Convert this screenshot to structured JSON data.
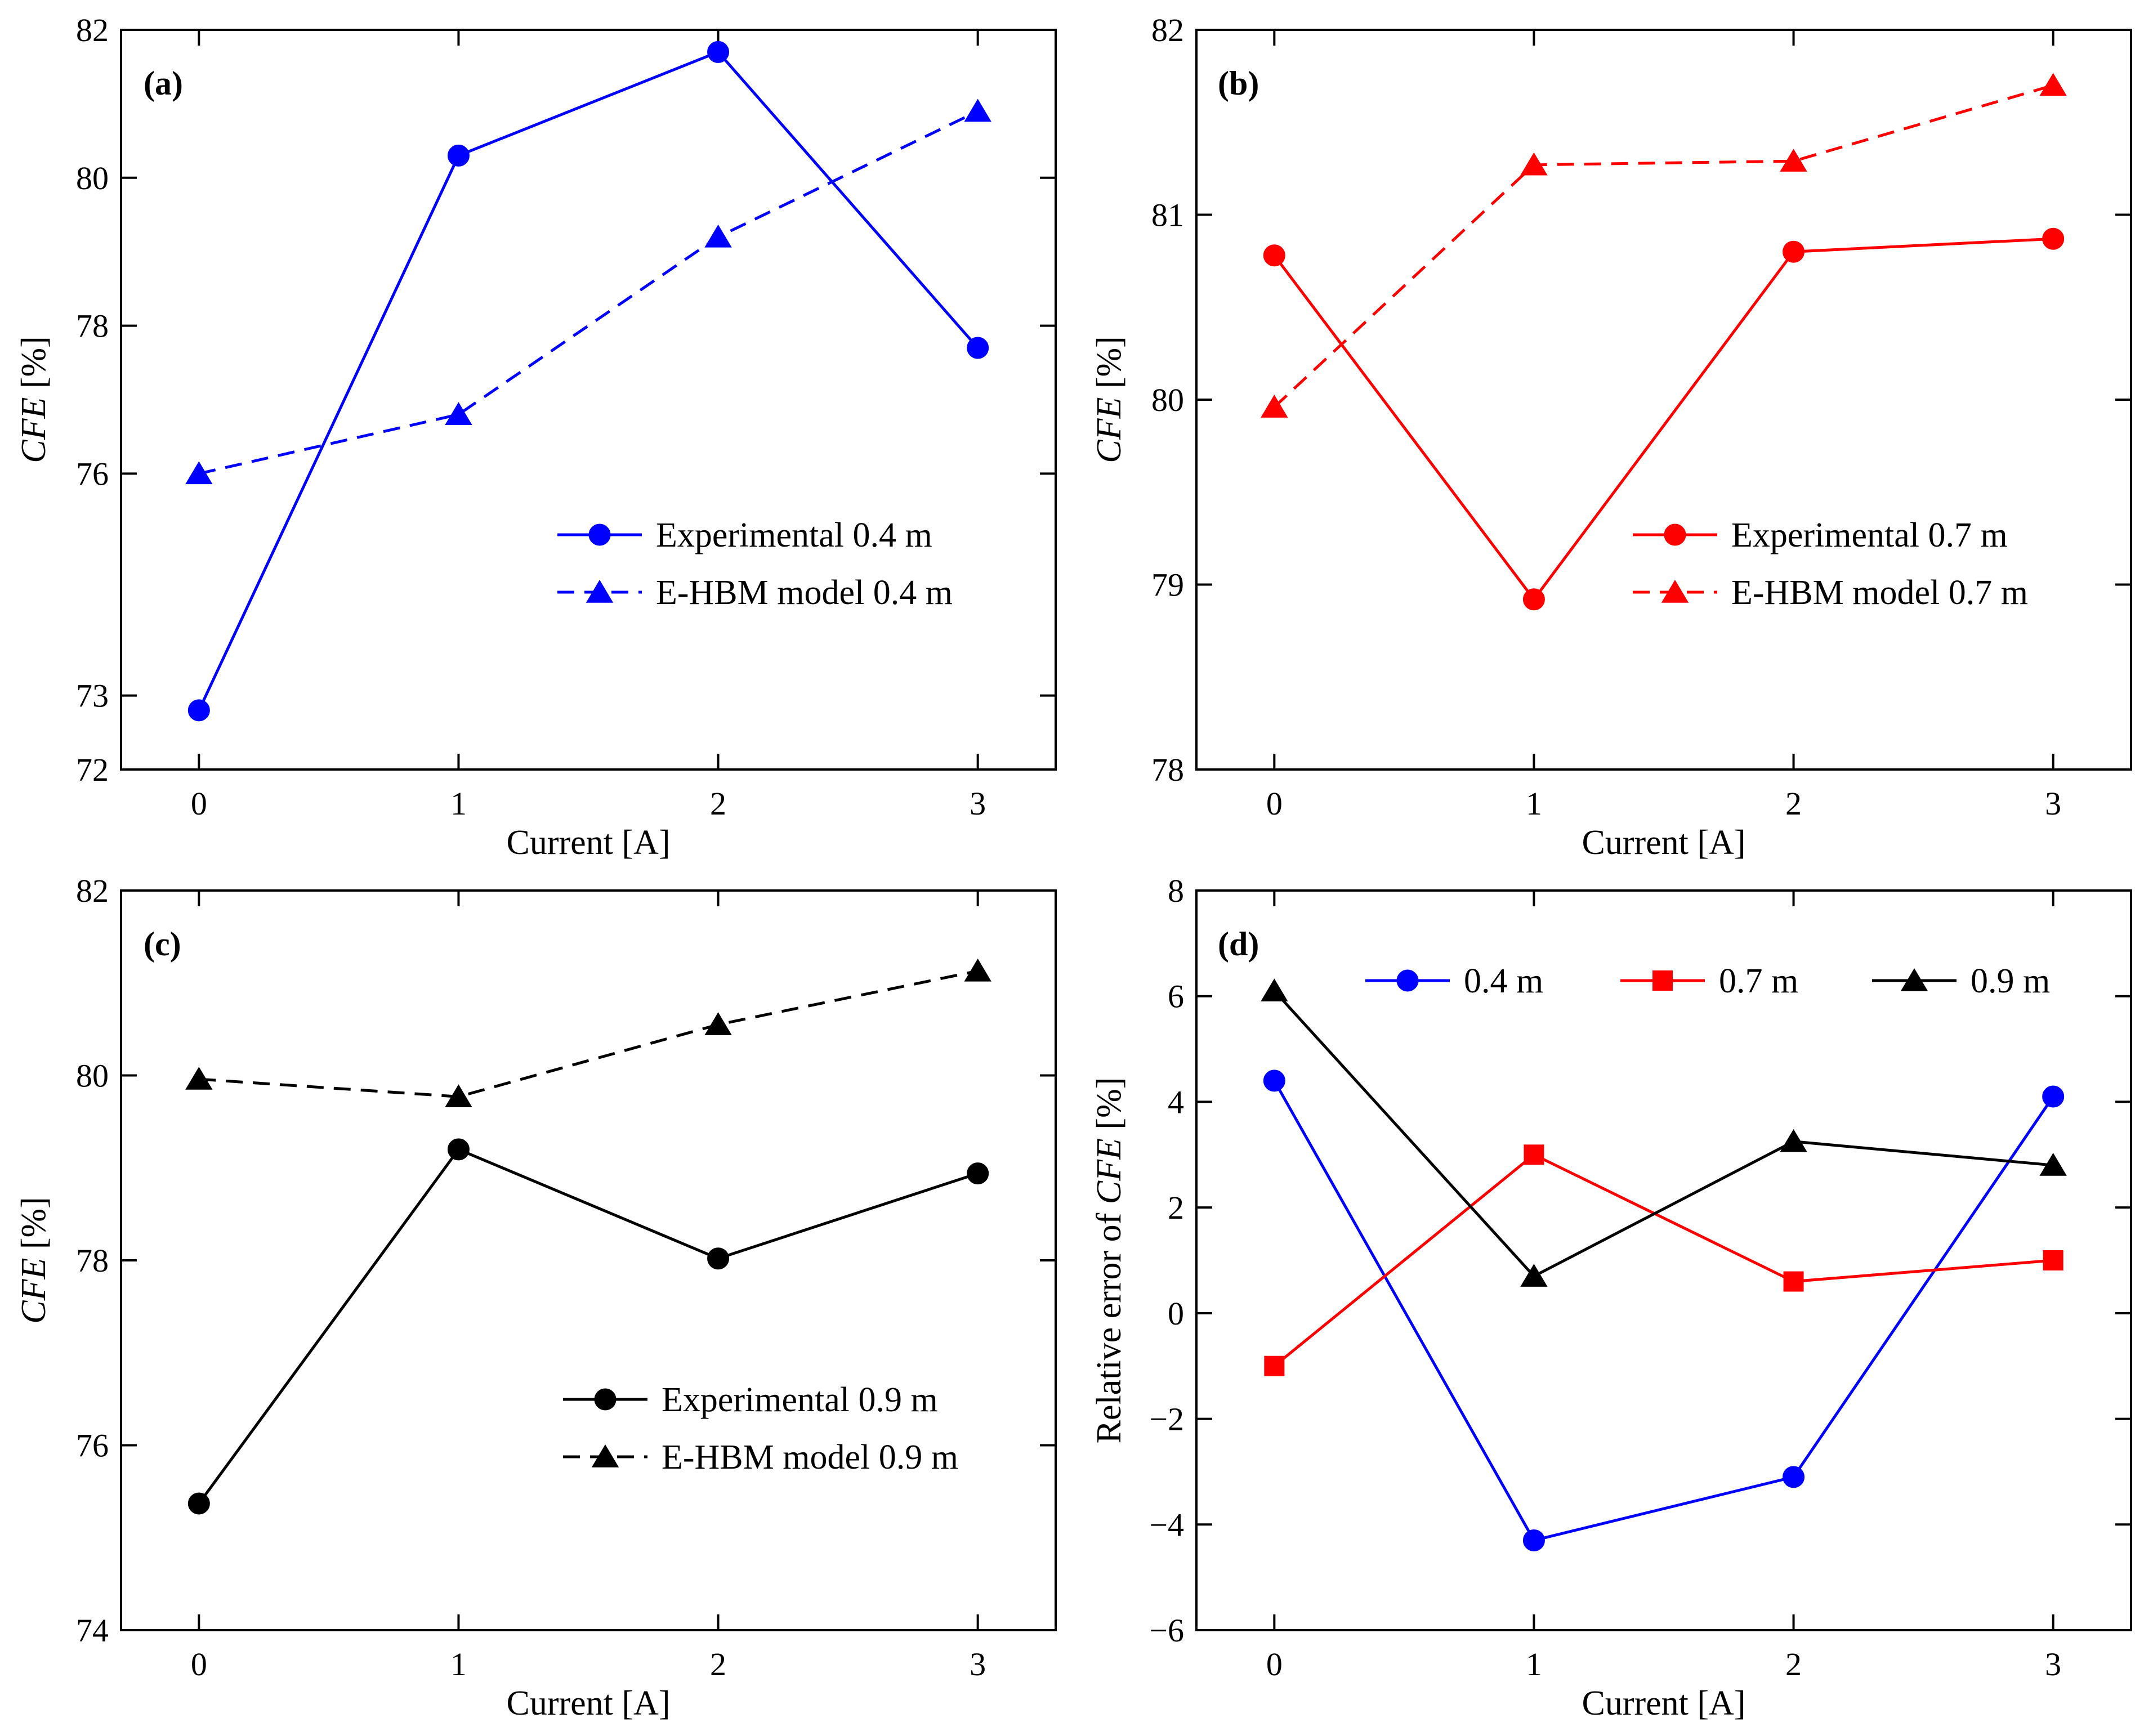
{
  "chart_data": [
    {
      "panel": "(a)",
      "type": "line",
      "xlabel": "Current [A]",
      "ylabel_italic": "CFE",
      "ylabel_rest": " [%]",
      "x": [
        0,
        1,
        2,
        3
      ],
      "xticks": [
        "0",
        "1",
        "2",
        "3"
      ],
      "yticks": [
        "72",
        "73",
        "76",
        "78",
        "80",
        "82"
      ],
      "ylim": [
        72,
        82
      ],
      "legend_position": "lower-right",
      "series": [
        {
          "name": "Experimental 0.4 m",
          "values": [
            72.8,
            80.3,
            81.7,
            77.7
          ],
          "color": "#0000ff",
          "dash": "solid",
          "marker": "circle"
        },
        {
          "name": "E-HBM model 0.4 m",
          "values": [
            76.0,
            76.8,
            79.2,
            80.9
          ],
          "color": "#0000ff",
          "dash": "dashed",
          "marker": "triangle"
        }
      ]
    },
    {
      "panel": "(b)",
      "type": "line",
      "xlabel": "Current [A]",
      "ylabel_italic": "CFE",
      "ylabel_rest": " [%]",
      "x": [
        0,
        1,
        2,
        3
      ],
      "xticks": [
        "0",
        "1",
        "2",
        "3"
      ],
      "yticks": [
        "78",
        "79",
        "80",
        "81",
        "82"
      ],
      "ylim": [
        78,
        82
      ],
      "legend_position": "lower-right",
      "series": [
        {
          "name": "Experimental 0.7 m",
          "values": [
            80.78,
            78.92,
            80.8,
            80.87
          ],
          "color": "#ff0000",
          "dash": "solid",
          "marker": "circle"
        },
        {
          "name": "E-HBM model 0.7 m",
          "values": [
            79.96,
            81.27,
            81.29,
            81.7
          ],
          "color": "#ff0000",
          "dash": "dashed",
          "marker": "triangle"
        }
      ]
    },
    {
      "panel": "(c)",
      "type": "line",
      "xlabel": "Current [A]",
      "ylabel_italic": "CFE",
      "ylabel_rest": " [%]",
      "x": [
        0,
        1,
        2,
        3
      ],
      "xticks": [
        "0",
        "1",
        "2",
        "3"
      ],
      "yticks": [
        "74",
        "76",
        "78",
        "80",
        "82"
      ],
      "ylim": [
        74,
        82
      ],
      "legend_position": "lower-right",
      "series": [
        {
          "name": "Experimental 0.9 m",
          "values": [
            75.37,
            79.2,
            78.02,
            78.94
          ],
          "color": "#000000",
          "dash": "solid",
          "marker": "circle"
        },
        {
          "name": "E-HBM model 0.9 m",
          "values": [
            79.96,
            79.77,
            80.55,
            81.13
          ],
          "color": "#000000",
          "dash": "dashed",
          "marker": "triangle"
        }
      ]
    },
    {
      "panel": "(d)",
      "type": "line",
      "xlabel": "Current [A]",
      "ylabel_prefix": "Relative error of ",
      "ylabel_italic": "CFE",
      "ylabel_rest": " [%]",
      "x": [
        0,
        1,
        2,
        3
      ],
      "xticks": [
        "0",
        "1",
        "2",
        "3"
      ],
      "yticks": [
        "−6",
        "−4",
        "−2",
        "0",
        "2",
        "4",
        "6",
        "8"
      ],
      "ylim": [
        -6,
        8
      ],
      "legend_position": "top",
      "series": [
        {
          "name": "0.4 m",
          "values": [
            4.4,
            -4.3,
            -3.1,
            4.1
          ],
          "color": "#0000ff",
          "dash": "solid",
          "marker": "circle"
        },
        {
          "name": "0.7 m",
          "values": [
            -1.0,
            3.0,
            0.6,
            1.0
          ],
          "color": "#ff0000",
          "dash": "solid",
          "marker": "square"
        },
        {
          "name": "0.9 m",
          "values": [
            6.1,
            0.7,
            3.25,
            2.8
          ],
          "color": "#000000",
          "dash": "solid",
          "marker": "triangle"
        }
      ]
    }
  ]
}
